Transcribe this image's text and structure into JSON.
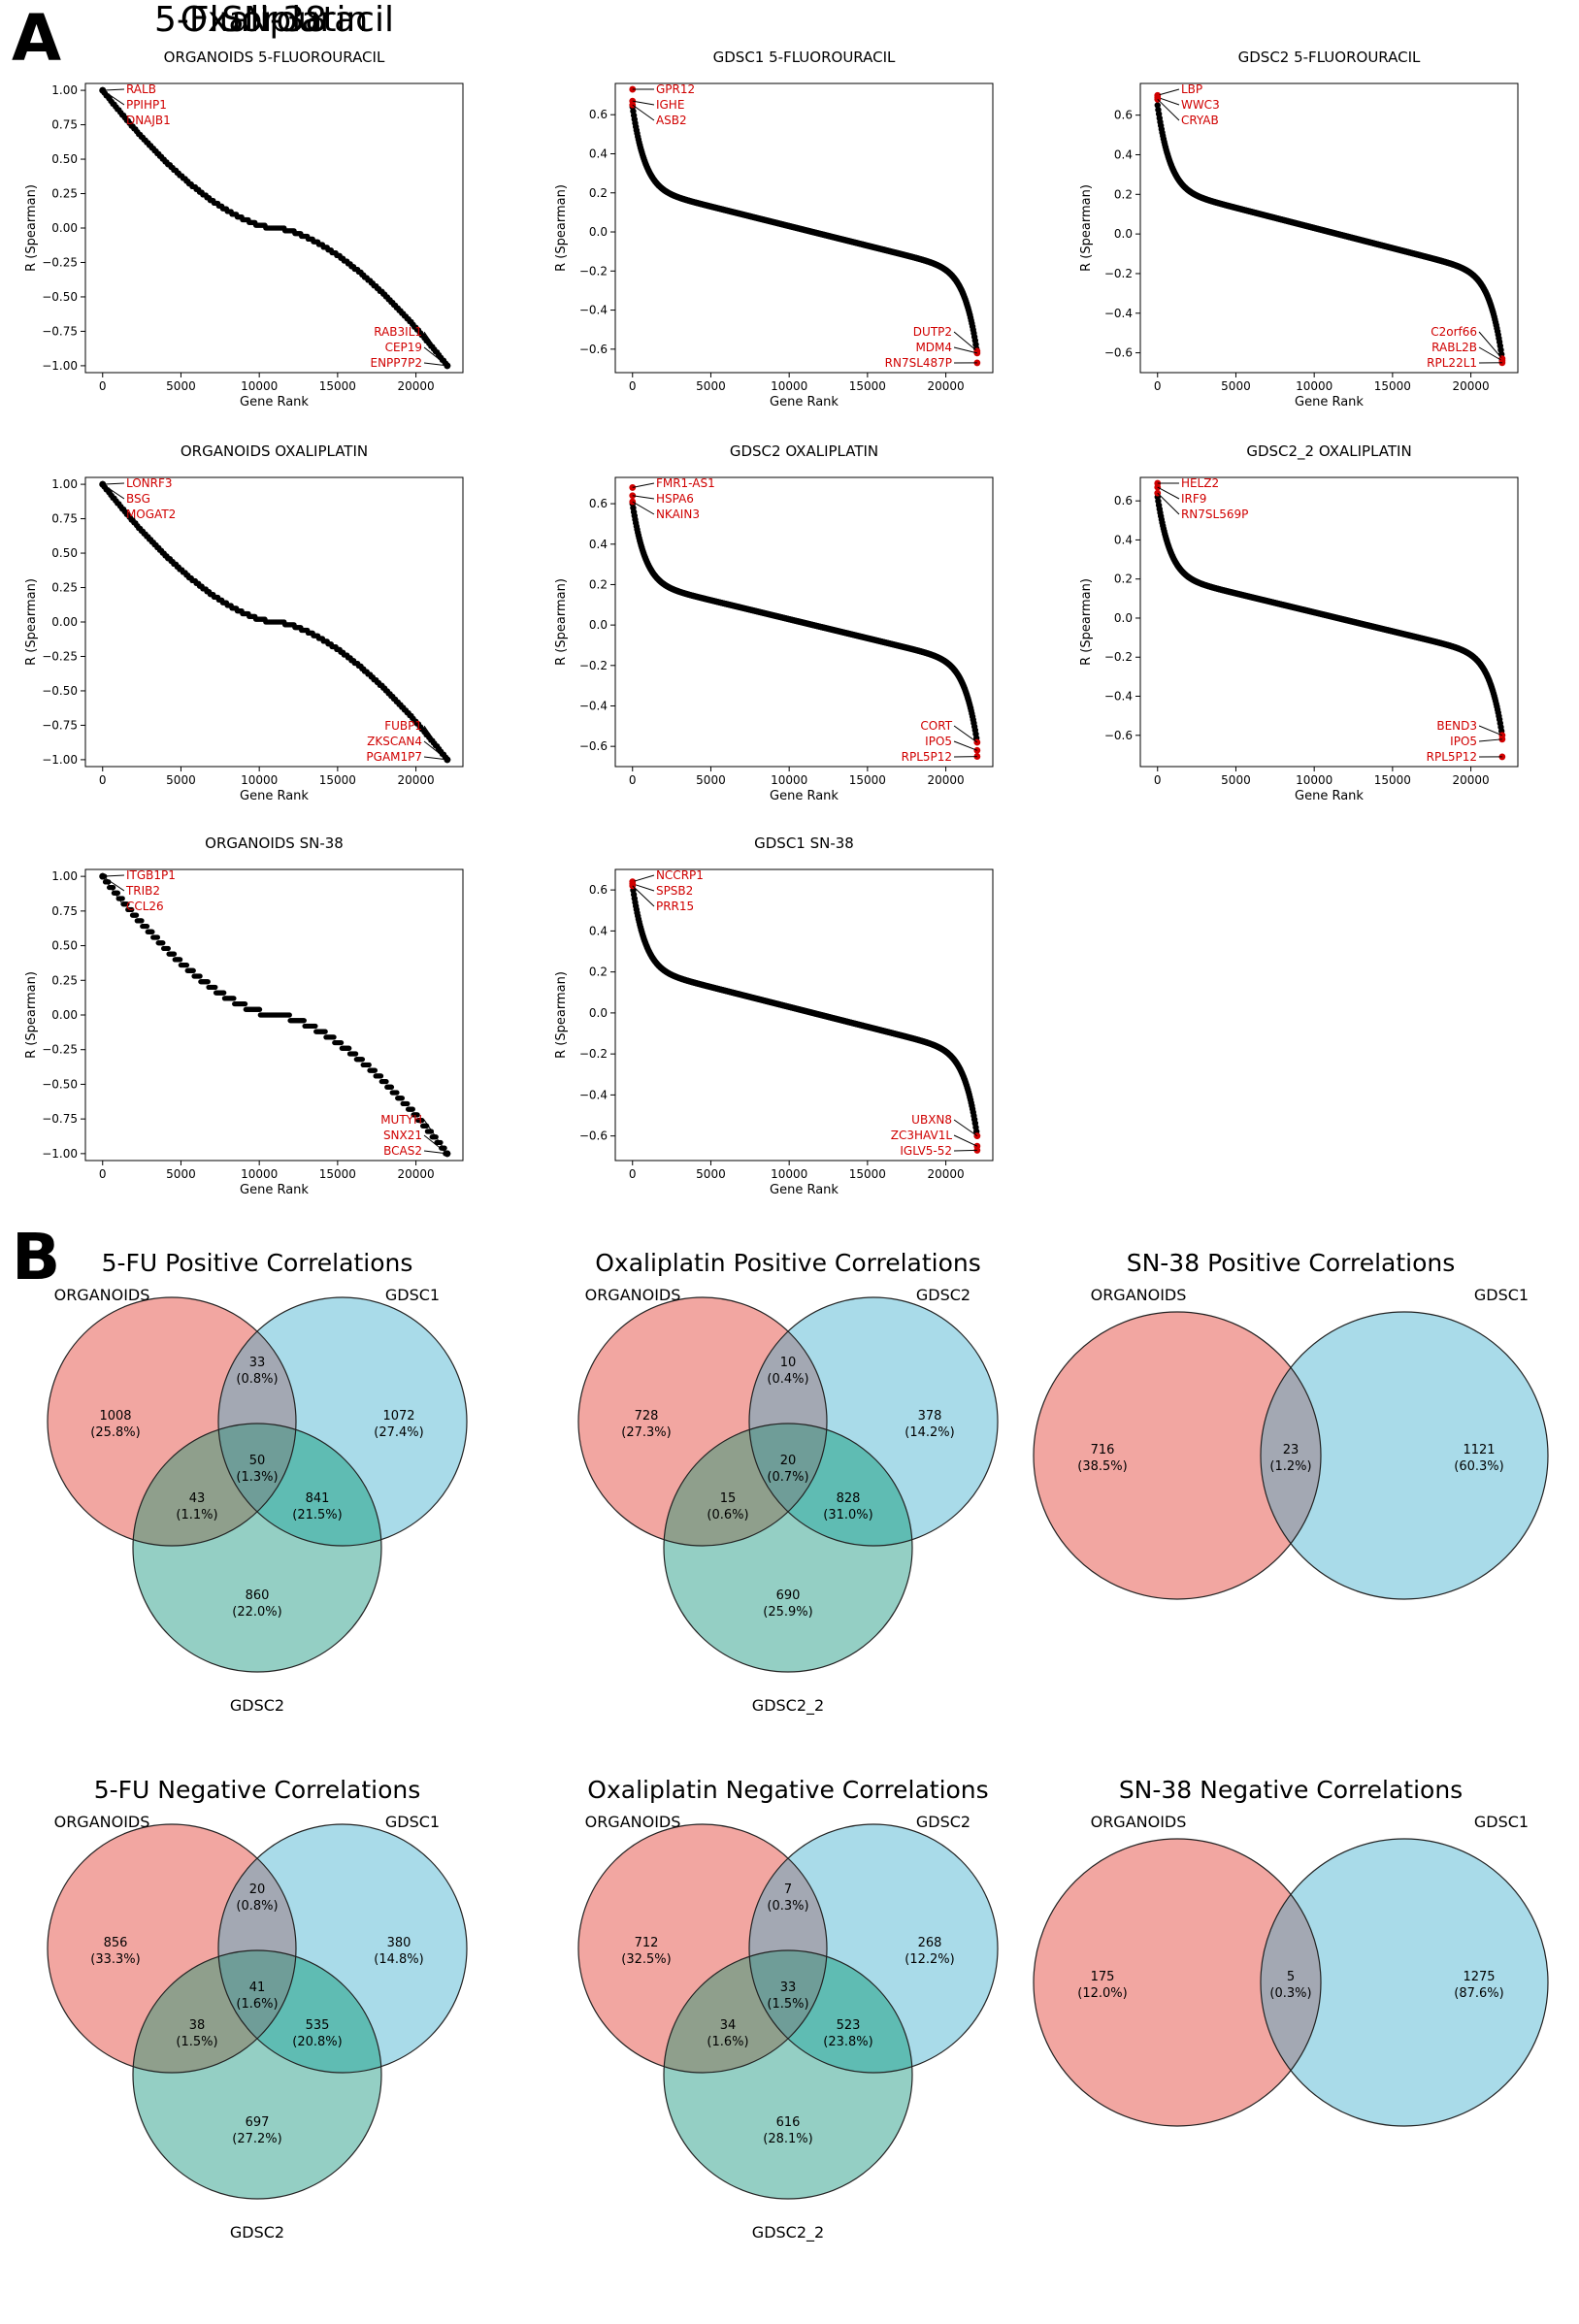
{
  "panels": {
    "a": "A",
    "b": "B"
  },
  "colors": {
    "organoids": "#f2a6a1",
    "gdsc1": "#a9dbe9",
    "gdsc2": "#94cfc4",
    "overlap_og1": "#a3a8b3",
    "overlap_og2": "#8f9f8c",
    "overlap_g1g2": "#5fbcb3",
    "overlap_all": "#6f9d98",
    "highlight": "#d00000",
    "points": "#000000"
  },
  "chart_data": [
    {
      "type": "scatter",
      "drug_header": "5-Fluorouracil",
      "title": "ORGANOIDS 5-FLUOROURACIL",
      "xlabel": "Gene Rank",
      "ylabel": "R (Spearman)",
      "xlim": [
        -1100,
        23000
      ],
      "ylim": [
        -1.05,
        1.05
      ],
      "xticks": [
        0,
        5000,
        10000,
        15000,
        20000
      ],
      "yticks": [
        1.0,
        0.75,
        0.5,
        0.25,
        0.0,
        -0.25,
        -0.5,
        -0.75,
        -1.0
      ],
      "ytick_labels": [
        "1.00",
        "0.75",
        "0.50",
        "0.25",
        "0.00",
        "−0.25",
        "−0.50",
        "−0.75",
        "−1.00"
      ],
      "n_genes": 22000,
      "r_max": 1.0,
      "r_min": -1.0,
      "step": 0.02,
      "top_labels": [
        "RALB",
        "PPIHP1",
        "DNAJB1"
      ],
      "bottom_labels": [
        "RAB3IL1",
        "CEP19",
        "ENPP7P2"
      ]
    },
    {
      "type": "scatter",
      "drug_header": "Oxaliplatin",
      "title": "ORGANOIDS OXALIPLATIN",
      "xlabel": "Gene Rank",
      "ylabel": "R (Spearman)",
      "xlim": [
        -1100,
        23000
      ],
      "ylim": [
        -1.05,
        1.05
      ],
      "xticks": [
        0,
        5000,
        10000,
        15000,
        20000
      ],
      "yticks": [
        1.0,
        0.75,
        0.5,
        0.25,
        0.0,
        -0.25,
        -0.5,
        -0.75,
        -1.0
      ],
      "ytick_labels": [
        "1.00",
        "0.75",
        "0.50",
        "0.25",
        "0.00",
        "−0.25",
        "−0.50",
        "−0.75",
        "−1.00"
      ],
      "n_genes": 22000,
      "r_max": 1.0,
      "r_min": -1.0,
      "step": 0.02,
      "top_labels": [
        "LONRF3",
        "BSG",
        "MOGAT2"
      ],
      "bottom_labels": [
        "FUBP1",
        "ZKSCAN4",
        "PGAM1P7"
      ]
    },
    {
      "type": "scatter",
      "drug_header": "SN-38",
      "title": "ORGANOIDS SN-38",
      "xlabel": "Gene Rank",
      "ylabel": "R (Spearman)",
      "xlim": [
        -1100,
        23000
      ],
      "ylim": [
        -1.05,
        1.05
      ],
      "xticks": [
        0,
        5000,
        10000,
        15000,
        20000
      ],
      "yticks": [
        1.0,
        0.75,
        0.5,
        0.25,
        0.0,
        -0.25,
        -0.5,
        -0.75,
        -1.0
      ],
      "ytick_labels": [
        "1.00",
        "0.75",
        "0.50",
        "0.25",
        "0.00",
        "−0.25",
        "−0.50",
        "−0.75",
        "−1.00"
      ],
      "n_genes": 22000,
      "r_max": 1.0,
      "r_min": -1.0,
      "step": 0.04,
      "top_labels": [
        "ITGB1P1",
        "TRIB2",
        "CCL26"
      ],
      "bottom_labels": [
        "MUTYH",
        "SNX21",
        "BCAS2"
      ]
    },
    {
      "type": "scatter",
      "title": "GDSC1 5-FLUOROURACIL",
      "xlabel": "Gene Rank",
      "ylabel": "R (Spearman)",
      "xlim": [
        -1100,
        23000
      ],
      "ylim": [
        -0.72,
        0.76
      ],
      "xticks": [
        0,
        5000,
        10000,
        15000,
        20000
      ],
      "yticks": [
        0.6,
        0.4,
        0.2,
        0.0,
        -0.2,
        -0.4,
        -0.6
      ],
      "ytick_labels": [
        "0.6",
        "0.4",
        "0.2",
        "0.0",
        "−0.2",
        "−0.4",
        "−0.6"
      ],
      "n_genes": 22000,
      "r_max": 0.64,
      "r_min": -0.62,
      "step": 0,
      "top_points": [
        0.73,
        0.67,
        0.65
      ],
      "bottom_points": [
        -0.61,
        -0.62,
        -0.67
      ],
      "top_labels": [
        "GPR12",
        "IGHE",
        "ASB2"
      ],
      "bottom_labels": [
        "DUTP2",
        "MDM4",
        "RN7SL487P"
      ]
    },
    {
      "type": "scatter",
      "title": "GDSC2 OXALIPLATIN",
      "xlabel": "Gene Rank",
      "ylabel": "R (Spearman)",
      "xlim": [
        -1100,
        23000
      ],
      "ylim": [
        -0.7,
        0.73
      ],
      "xticks": [
        0,
        5000,
        10000,
        15000,
        20000
      ],
      "yticks": [
        0.6,
        0.4,
        0.2,
        0.0,
        -0.2,
        -0.4,
        -0.6
      ],
      "ytick_labels": [
        "0.6",
        "0.4",
        "0.2",
        "0.0",
        "−0.2",
        "−0.4",
        "−0.6"
      ],
      "n_genes": 22000,
      "r_max": 0.6,
      "r_min": -0.58,
      "step": 0,
      "top_points": [
        0.68,
        0.64,
        0.61
      ],
      "bottom_points": [
        -0.58,
        -0.62,
        -0.65
      ],
      "top_labels": [
        "FMR1-AS1",
        "HSPA6",
        "NKAIN3"
      ],
      "bottom_labels": [
        "CORT",
        "IPO5",
        "RPL5P12"
      ]
    },
    {
      "type": "scatter",
      "title": "GDSC1 SN-38",
      "xlabel": "Gene Rank",
      "ylabel": "R (Spearman)",
      "xlim": [
        -1100,
        23000
      ],
      "ylim": [
        -0.72,
        0.7
      ],
      "xticks": [
        0,
        5000,
        10000,
        15000,
        20000
      ],
      "yticks": [
        0.6,
        0.4,
        0.2,
        0.0,
        -0.2,
        -0.4,
        -0.6
      ],
      "ytick_labels": [
        "0.6",
        "0.4",
        "0.2",
        "0.0",
        "−0.2",
        "−0.4",
        "−0.6"
      ],
      "n_genes": 22000,
      "r_max": 0.62,
      "r_min": -0.6,
      "step": 0,
      "top_points": [
        0.64,
        0.63,
        0.62
      ],
      "bottom_points": [
        -0.6,
        -0.65,
        -0.67
      ],
      "top_labels": [
        "NCCRP1",
        "SPSB2",
        "PRR15"
      ],
      "bottom_labels": [
        "UBXN8",
        "ZC3HAV1L",
        "IGLV5-52"
      ]
    },
    {
      "type": "scatter",
      "title": "GDSC2 5-FLUOROURACIL",
      "xlabel": "Gene Rank",
      "ylabel": "R (Spearman)",
      "xlim": [
        -1100,
        23000
      ],
      "ylim": [
        -0.7,
        0.76
      ],
      "xticks": [
        0,
        5000,
        10000,
        15000,
        20000
      ],
      "yticks": [
        0.6,
        0.4,
        0.2,
        0.0,
        -0.2,
        -0.4,
        -0.6
      ],
      "ytick_labels": [
        "0.6",
        "0.4",
        "0.2",
        "0.0",
        "−0.2",
        "−0.4",
        "−0.6"
      ],
      "n_genes": 22000,
      "r_max": 0.65,
      "r_min": -0.63,
      "step": 0,
      "top_points": [
        0.7,
        0.69,
        0.68
      ],
      "bottom_points": [
        -0.63,
        -0.64,
        -0.65
      ],
      "top_labels": [
        "LBP",
        "WWC3",
        "CRYAB"
      ],
      "bottom_labels": [
        "C2orf66",
        "RABL2B",
        "RPL22L1"
      ]
    },
    {
      "type": "scatter",
      "title": "GDSC2_2 OXALIPLATIN",
      "xlabel": "Gene Rank",
      "ylabel": "R (Spearman)",
      "xlim": [
        -1100,
        23000
      ],
      "ylim": [
        -0.76,
        0.72
      ],
      "xticks": [
        0,
        5000,
        10000,
        15000,
        20000
      ],
      "yticks": [
        0.6,
        0.4,
        0.2,
        0.0,
        -0.2,
        -0.4,
        -0.6
      ],
      "ytick_labels": [
        "0.6",
        "0.4",
        "0.2",
        "0.0",
        "−0.2",
        "−0.4",
        "−0.6"
      ],
      "n_genes": 22000,
      "r_max": 0.62,
      "r_min": -0.6,
      "step": 0,
      "top_points": [
        0.69,
        0.67,
        0.64
      ],
      "bottom_points": [
        -0.6,
        -0.62,
        -0.71
      ],
      "top_labels": [
        "HELZ2",
        "IRF9",
        "RN7SL569P"
      ],
      "bottom_labels": [
        "BEND3",
        "IPO5",
        "RPL5P12"
      ]
    },
    {
      "type": "venn3",
      "title": "5-FU Positive Correlations",
      "set_labels": [
        "ORGANOIDS",
        "GDSC1",
        "GDSC2"
      ],
      "regions": {
        "o": [
          "1008",
          "(25.8%)"
        ],
        "g1": [
          "1072",
          "(27.4%)"
        ],
        "g2": [
          "860",
          "(22.0%)"
        ],
        "o_g1": [
          "33",
          "(0.8%)"
        ],
        "o_g2": [
          "43",
          "(1.1%)"
        ],
        "g1_g2": [
          "841",
          "(21.5%)"
        ],
        "all": [
          "50",
          "(1.3%)"
        ]
      }
    },
    {
      "type": "venn3",
      "title": "Oxaliplatin Positive Correlations",
      "set_labels": [
        "ORGANOIDS",
        "GDSC2",
        "GDSC2_2"
      ],
      "regions": {
        "o": [
          "728",
          "(27.3%)"
        ],
        "g1": [
          "378",
          "(14.2%)"
        ],
        "g2": [
          "690",
          "(25.9%)"
        ],
        "o_g1": [
          "10",
          "(0.4%)"
        ],
        "o_g2": [
          "15",
          "(0.6%)"
        ],
        "g1_g2": [
          "828",
          "(31.0%)"
        ],
        "all": [
          "20",
          "(0.7%)"
        ]
      }
    },
    {
      "type": "venn2",
      "title": "SN-38 Positive Correlations",
      "set_labels": [
        "ORGANOIDS",
        "GDSC1"
      ],
      "regions": {
        "o": [
          "716",
          "(38.5%)"
        ],
        "g1": [
          "1121",
          "(60.3%)"
        ],
        "o_g1": [
          "23",
          "(1.2%)"
        ]
      }
    },
    {
      "type": "venn3",
      "title": "5-FU Negative Correlations",
      "set_labels": [
        "ORGANOIDS",
        "GDSC1",
        "GDSC2"
      ],
      "regions": {
        "o": [
          "856",
          "(33.3%)"
        ],
        "g1": [
          "380",
          "(14.8%)"
        ],
        "g2": [
          "697",
          "(27.2%)"
        ],
        "o_g1": [
          "20",
          "(0.8%)"
        ],
        "o_g2": [
          "38",
          "(1.5%)"
        ],
        "g1_g2": [
          "535",
          "(20.8%)"
        ],
        "all": [
          "41",
          "(1.6%)"
        ]
      }
    },
    {
      "type": "venn3",
      "title": "Oxaliplatin Negative Correlations",
      "set_labels": [
        "ORGANOIDS",
        "GDSC2",
        "GDSC2_2"
      ],
      "regions": {
        "o": [
          "712",
          "(32.5%)"
        ],
        "g1": [
          "268",
          "(12.2%)"
        ],
        "g2": [
          "616",
          "(28.1%)"
        ],
        "o_g1": [
          "7",
          "(0.3%)"
        ],
        "o_g2": [
          "34",
          "(1.6%)"
        ],
        "g1_g2": [
          "523",
          "(23.8%)"
        ],
        "all": [
          "33",
          "(1.5%)"
        ]
      }
    },
    {
      "type": "venn2",
      "title": "SN-38 Negative Correlations",
      "set_labels": [
        "ORGANOIDS",
        "GDSC1"
      ],
      "regions": {
        "o": [
          "175",
          "(12.0%)"
        ],
        "g1": [
          "1275",
          "(87.6%)"
        ],
        "o_g1": [
          "5",
          "(0.3%)"
        ]
      }
    }
  ]
}
